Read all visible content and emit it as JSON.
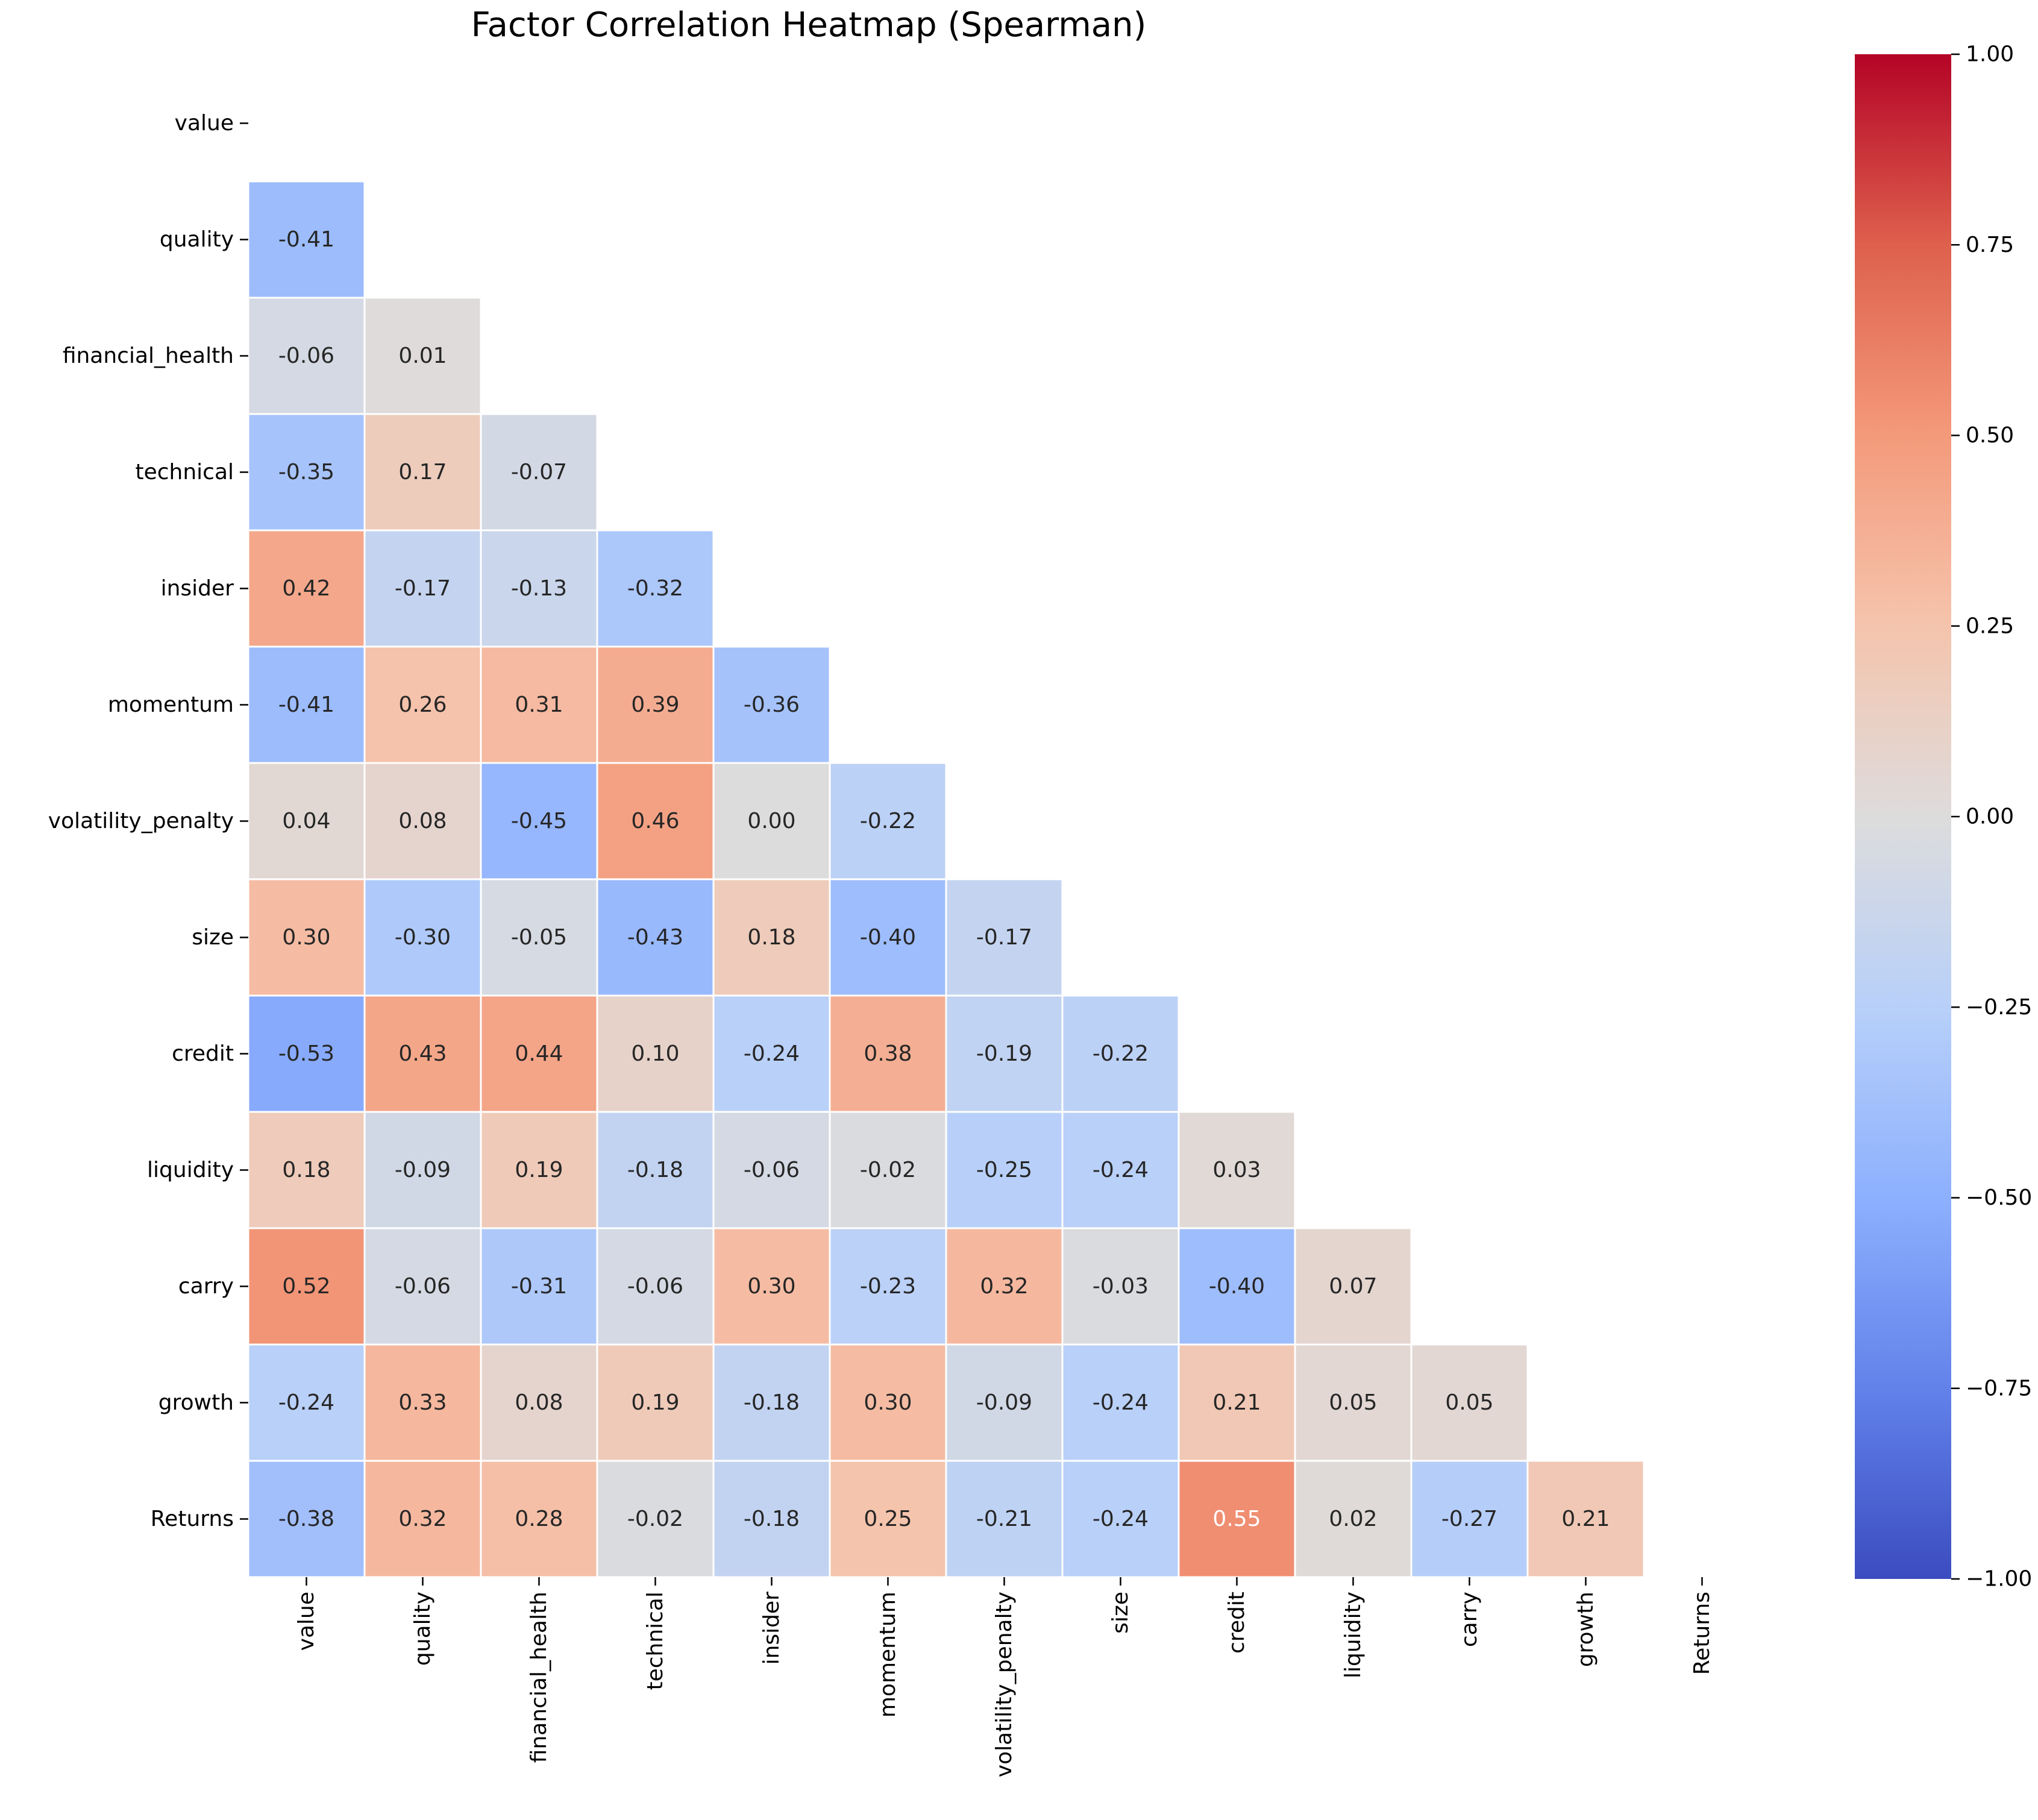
{
  "chart_data": {
    "type": "heatmap",
    "title": "Factor Correlation Heatmap (Spearman)",
    "xlabel": "",
    "ylabel": "",
    "row_labels": [
      "value",
      "quality",
      "financial_health",
      "technical",
      "insider",
      "momentum",
      "volatility_penalty",
      "size",
      "credit",
      "liquidity",
      "carry",
      "growth",
      "Returns"
    ],
    "col_labels": [
      "value",
      "quality",
      "financial_health",
      "technical",
      "insider",
      "momentum",
      "volatility_penalty",
      "size",
      "credit",
      "liquidity",
      "carry",
      "growth",
      "Returns"
    ],
    "values": [
      [],
      [
        -0.41
      ],
      [
        -0.06,
        0.01
      ],
      [
        -0.35,
        0.17,
        -0.07
      ],
      [
        0.42,
        -0.17,
        -0.13,
        -0.32
      ],
      [
        -0.41,
        0.26,
        0.31,
        0.39,
        -0.36
      ],
      [
        0.04,
        0.08,
        -0.45,
        0.46,
        0.0,
        -0.22
      ],
      [
        0.3,
        -0.3,
        -0.05,
        -0.43,
        0.18,
        -0.4,
        -0.17
      ],
      [
        -0.53,
        0.43,
        0.44,
        0.1,
        -0.24,
        0.38,
        -0.19,
        -0.22
      ],
      [
        0.18,
        -0.09,
        0.19,
        -0.18,
        -0.06,
        -0.02,
        -0.25,
        -0.24,
        0.03
      ],
      [
        0.52,
        -0.06,
        -0.31,
        -0.06,
        0.3,
        -0.23,
        0.32,
        -0.03,
        -0.4,
        0.07
      ],
      [
        -0.24,
        0.33,
        0.08,
        0.19,
        -0.18,
        0.3,
        -0.09,
        -0.24,
        0.21,
        0.05,
        0.05
      ],
      [
        -0.38,
        0.32,
        0.28,
        -0.02,
        -0.18,
        0.25,
        -0.21,
        -0.24,
        0.55,
        0.02,
        -0.27,
        0.21
      ]
    ],
    "mask": "upper-triangle-including-diagonal",
    "colormap": "coolwarm",
    "vmin": -1.0,
    "vmax": 1.0,
    "colorbar_ticks": [
      "1.00",
      "0.75",
      "0.50",
      "0.25",
      "0.00",
      "−0.25",
      "−0.50",
      "−0.75",
      "−1.00"
    ],
    "colorbar_tick_values": [
      1.0,
      0.75,
      0.5,
      0.25,
      0.0,
      -0.25,
      -0.5,
      -0.75,
      -1.0
    ],
    "grid": false,
    "cell_border_color": "#ffffff",
    "label_dark_color": "#262626",
    "label_light_color": "#ffffff"
  }
}
